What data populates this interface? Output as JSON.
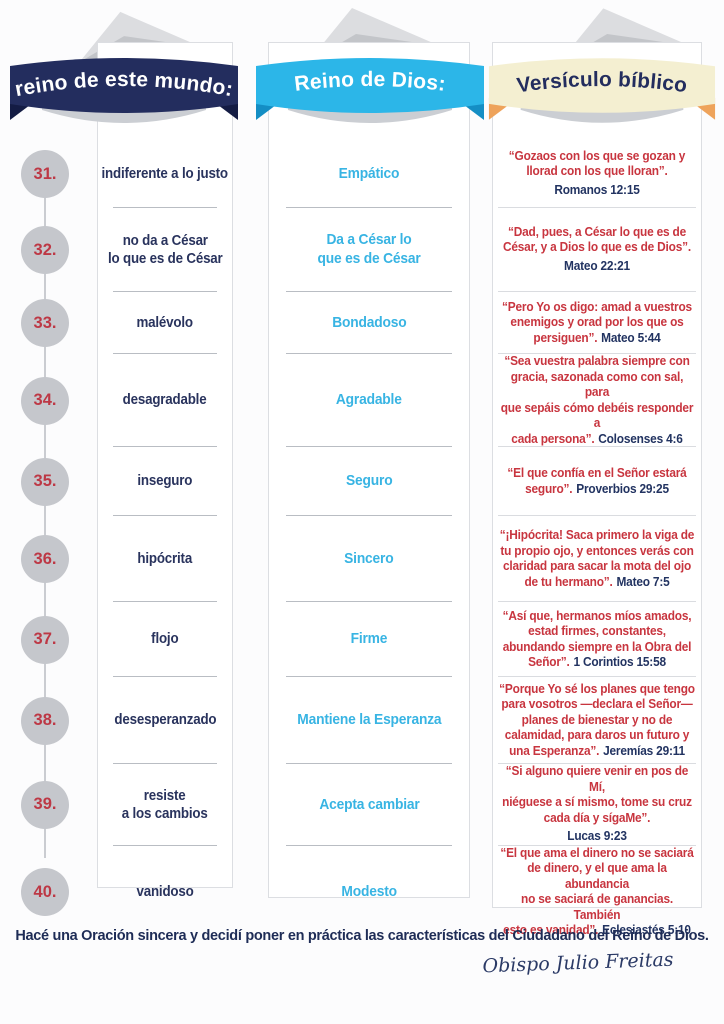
{
  "headers": [
    {
      "label": "reino de este mundo:",
      "banner_color": "#232d5e",
      "text_color": "#ffffff",
      "fold_color": "#141c44"
    },
    {
      "label": "Reino de Dios:",
      "banner_color": "#2cb6e8",
      "text_color": "#ffffff",
      "fold_color": "#148ec4"
    },
    {
      "label": "Versículo bíblico",
      "banner_color": "#f4efd1",
      "text_color": "#232d5e",
      "fold_color": "#eea35b"
    }
  ],
  "rows": [
    {
      "num": "31.",
      "world": "indiferente a lo justo",
      "god": "Empático",
      "verse": "“Gozaos con los que se gozan y\nllorad con los que lloran”.",
      "ref": "Romanos 12:15",
      "ref_own_line": true
    },
    {
      "num": "32.",
      "world": "no da a César\nlo que es de César",
      "god": "Da a César lo\nque es de César",
      "verse": "“Dad, pues, a César lo que es de\nCésar, y a Dios lo que es de Dios”.",
      "ref": "Mateo 22:21",
      "ref_own_line": true
    },
    {
      "num": "33.",
      "world": "malévolo",
      "god": "Bondadoso",
      "verse": "“Pero Yo os digo: amad a vuestros\nenemigos y orad por los que os\npersiguen”.",
      "ref": "Mateo 5:44",
      "ref_own_line": false
    },
    {
      "num": "34.",
      "world": "desagradable",
      "god": "Agradable",
      "verse": "“Sea vuestra palabra siempre con\ngracia, sazonada como con sal, para\nque sepáis cómo debéis responder a\ncada persona”.",
      "ref": "Colosenses 4:6",
      "ref_own_line": false
    },
    {
      "num": "35.",
      "world": "inseguro",
      "god": "Seguro",
      "verse": "“El que confía en el Señor estará\nseguro”.",
      "ref": "Proverbios 29:25",
      "ref_own_line": false
    },
    {
      "num": "36.",
      "world": "hipócrita",
      "god": "Sincero",
      "verse": "“¡Hipócrita! Saca primero la viga de\ntu propio ojo, y entonces verás con\nclaridad para sacar la mota del ojo\nde tu hermano”.",
      "ref": "Mateo 7:5",
      "ref_own_line": false
    },
    {
      "num": "37.",
      "world": "flojo",
      "god": "Firme",
      "verse": "“Así que, hermanos míos amados,\nestad firmes, constantes,\nabundando siempre en la Obra del\nSeñor”.",
      "ref": "1 Corintios 15:58",
      "ref_own_line": false
    },
    {
      "num": "38.",
      "world": "desesperanzado",
      "god": "Mantiene la Esperanza",
      "verse": "“Porque Yo sé los planes que tengo\npara vosotros —declara el Señor—\nplanes de bienestar y no de\ncalamidad, para daros un futuro y\nuna Esperanza”.",
      "ref": "Jeremías 29:11",
      "ref_own_line": false
    },
    {
      "num": "39.",
      "world": "resiste\na los cambios",
      "god": "Acepta cambiar",
      "verse": "“Si alguno quiere venir en pos de Mí,\nniéguese a sí mismo, tome su cruz\ncada día y sígaMe”.",
      "ref": "Lucas 9:23",
      "ref_own_line": true
    },
    {
      "num": "40.",
      "world": "vanidoso",
      "god": "Modesto",
      "verse": "“El que ama el dinero no se saciará\nde dinero, y el que ama la abundancia\nno se saciará de ganancias. También\nesto es vanidad”.",
      "ref": "Eclesiastés 5:10",
      "ref_own_line": false
    }
  ],
  "footer": {
    "call_to_action": "Hacé una Oración sincera y decidí poner en práctica las características del Ciudadano del Reino de Dios.",
    "signature": "Obispo Julio Freitas"
  },
  "colors": {
    "verse_text": "#c8353f",
    "reference_text": "#223361",
    "world_text": "#29335d",
    "god_text": "#38b4e3",
    "number_text": "#bd3845",
    "circle": "#c5c7cc"
  }
}
